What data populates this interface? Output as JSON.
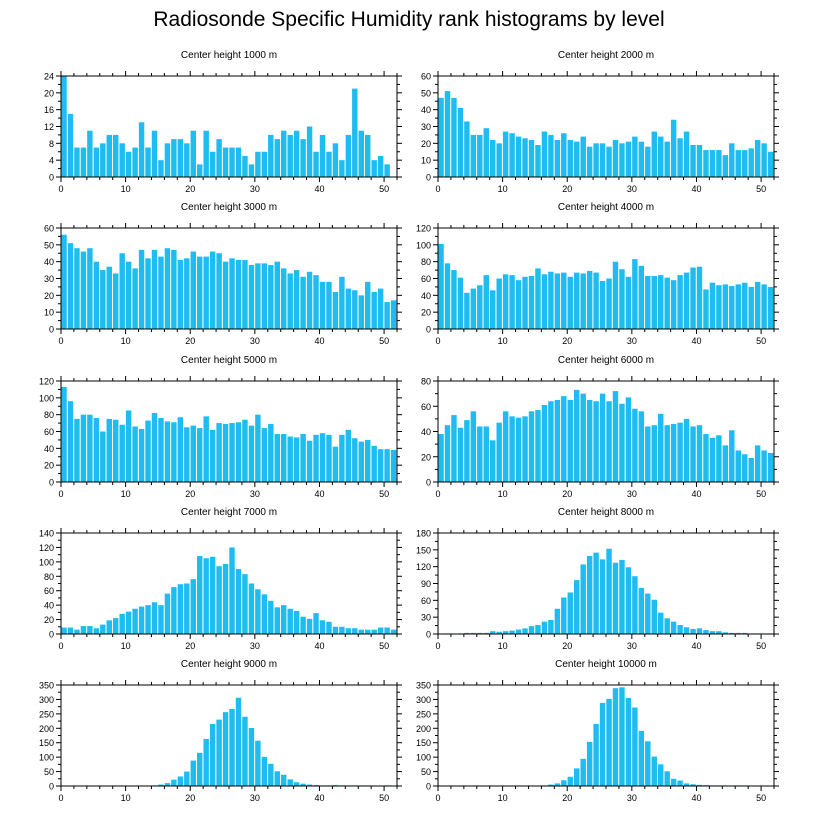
{
  "title": "Radiosonde Specific Humidity rank histograms by level",
  "colors": {
    "bar": "#1ebcf0",
    "axis": "#000000",
    "background": "#ffffff"
  },
  "chart_data": [
    {
      "type": "bar",
      "title": "Center height 1000 m",
      "xlim": [
        0,
        52
      ],
      "ylim": [
        0,
        24
      ],
      "xticks": [
        0,
        10,
        20,
        30,
        40,
        50
      ],
      "yticks": [
        0,
        4,
        8,
        12,
        16,
        20,
        24
      ],
      "values": [
        24,
        15,
        7,
        7,
        11,
        7,
        8,
        10,
        10,
        8,
        6,
        7,
        13,
        7,
        11,
        4,
        8,
        9,
        9,
        8,
        11,
        3,
        11,
        6,
        9,
        7,
        7,
        7,
        5,
        3,
        6,
        6,
        10,
        9,
        11,
        10,
        11,
        9,
        12,
        6,
        10,
        6,
        8,
        4,
        10,
        21,
        11,
        10,
        4,
        5,
        3
      ]
    },
    {
      "type": "bar",
      "title": "Center height 2000 m",
      "xlim": [
        0,
        52
      ],
      "ylim": [
        0,
        60
      ],
      "xticks": [
        0,
        10,
        20,
        30,
        40,
        50
      ],
      "yticks": [
        0,
        10,
        20,
        30,
        40,
        50,
        60
      ],
      "values": [
        47,
        51,
        47,
        41,
        33,
        25,
        25,
        29,
        22,
        20,
        27,
        26,
        24,
        23,
        22,
        19,
        27,
        25,
        22,
        26,
        22,
        21,
        24,
        18,
        20,
        20,
        18,
        22,
        20,
        21,
        24,
        21,
        18,
        27,
        24,
        21,
        34,
        23,
        27,
        19,
        19,
        16,
        16,
        16,
        13,
        20,
        16,
        16,
        17,
        22,
        20,
        15
      ]
    },
    {
      "type": "bar",
      "title": "Center height 3000 m",
      "xlim": [
        0,
        52
      ],
      "ylim": [
        0,
        60
      ],
      "xticks": [
        0,
        10,
        20,
        30,
        40,
        50
      ],
      "yticks": [
        0,
        10,
        20,
        30,
        40,
        50,
        60
      ],
      "values": [
        56,
        51,
        48,
        46,
        48,
        40,
        35,
        37,
        33,
        45,
        40,
        36,
        47,
        42,
        47,
        43,
        48,
        47,
        41,
        42,
        46,
        43,
        43,
        46,
        45,
        40,
        42,
        41,
        41,
        38,
        39,
        39,
        38,
        40,
        36,
        33,
        35,
        31,
        34,
        32,
        28,
        28,
        22,
        31,
        24,
        23,
        20,
        28,
        22,
        24,
        16,
        17
      ]
    },
    {
      "type": "bar",
      "title": "Center height 4000 m",
      "xlim": [
        0,
        52
      ],
      "ylim": [
        0,
        120
      ],
      "xticks": [
        0,
        10,
        20,
        30,
        40,
        50
      ],
      "yticks": [
        0,
        20,
        40,
        60,
        80,
        100,
        120
      ],
      "values": [
        101,
        78,
        70,
        61,
        43,
        48,
        52,
        64,
        46,
        60,
        65,
        64,
        58,
        62,
        63,
        72,
        65,
        68,
        66,
        67,
        62,
        67,
        66,
        69,
        67,
        57,
        60,
        80,
        71,
        62,
        83,
        75,
        63,
        63,
        64,
        61,
        58,
        64,
        67,
        73,
        74,
        47,
        55,
        52,
        53,
        51,
        53,
        55,
        50,
        56,
        53,
        50
      ]
    },
    {
      "type": "bar",
      "title": "Center height 5000 m",
      "xlim": [
        0,
        52
      ],
      "ylim": [
        0,
        120
      ],
      "xticks": [
        0,
        10,
        20,
        30,
        40,
        50
      ],
      "yticks": [
        0,
        20,
        40,
        60,
        80,
        100,
        120
      ],
      "values": [
        113,
        96,
        75,
        80,
        80,
        76,
        60,
        75,
        74,
        68,
        85,
        66,
        63,
        73,
        82,
        76,
        72,
        71,
        77,
        65,
        67,
        64,
        78,
        62,
        70,
        69,
        70,
        71,
        74,
        67,
        80,
        64,
        69,
        57,
        57,
        54,
        53,
        57,
        49,
        56,
        58,
        56,
        42,
        56,
        62,
        52,
        48,
        50,
        43,
        39,
        39,
        38
      ]
    },
    {
      "type": "bar",
      "title": "Center height 6000 m",
      "xlim": [
        0,
        52
      ],
      "ylim": [
        0,
        80
      ],
      "xticks": [
        0,
        10,
        20,
        30,
        40,
        50
      ],
      "yticks": [
        0,
        20,
        40,
        60,
        80
      ],
      "values": [
        38,
        45,
        53,
        43,
        49,
        56,
        44,
        44,
        33,
        47,
        56,
        52,
        51,
        52,
        56,
        57,
        61,
        64,
        65,
        68,
        65,
        73,
        70,
        65,
        64,
        70,
        64,
        72,
        62,
        67,
        58,
        56,
        44,
        45,
        54,
        45,
        46,
        47,
        50,
        44,
        45,
        38,
        35,
        37,
        29,
        41,
        25,
        22,
        19,
        29,
        25,
        23
      ]
    },
    {
      "type": "bar",
      "title": "Center height 7000 m",
      "xlim": [
        0,
        52
      ],
      "ylim": [
        0,
        140
      ],
      "xticks": [
        0,
        10,
        20,
        30,
        40,
        50
      ],
      "yticks": [
        0,
        20,
        40,
        60,
        80,
        100,
        120,
        140
      ],
      "values": [
        9,
        9,
        6,
        11,
        11,
        8,
        13,
        19,
        22,
        28,
        31,
        35,
        38,
        40,
        44,
        40,
        56,
        65,
        69,
        70,
        76,
        108,
        105,
        107,
        94,
        97,
        120,
        90,
        83,
        70,
        62,
        55,
        46,
        37,
        40,
        35,
        32,
        24,
        21,
        29,
        19,
        17,
        10,
        10,
        8,
        8,
        6,
        6,
        6,
        9,
        9,
        6
      ]
    },
    {
      "type": "bar",
      "title": "Center height 8000 m",
      "xlim": [
        0,
        52
      ],
      "ylim": [
        0,
        180
      ],
      "xticks": [
        0,
        10,
        20,
        30,
        40,
        50
      ],
      "yticks": [
        0,
        30,
        60,
        90,
        120,
        150,
        180
      ],
      "values": [
        0,
        1,
        1,
        1,
        2,
        2,
        2,
        2,
        5,
        4,
        5,
        6,
        8,
        10,
        14,
        16,
        22,
        25,
        45,
        65,
        74,
        96,
        124,
        139,
        145,
        133,
        152,
        127,
        132,
        119,
        103,
        82,
        72,
        61,
        38,
        28,
        22,
        16,
        12,
        9,
        10,
        7,
        5,
        5,
        3,
        2,
        2,
        2,
        1,
        1,
        1,
        1
      ]
    },
    {
      "type": "bar",
      "title": "Center height 9000 m",
      "xlim": [
        0,
        52
      ],
      "ylim": [
        0,
        350
      ],
      "xticks": [
        0,
        10,
        20,
        30,
        40,
        50
      ],
      "yticks": [
        0,
        50,
        100,
        150,
        200,
        250,
        300,
        350
      ],
      "values": [
        0,
        0,
        0,
        0,
        0,
        0,
        0,
        0,
        0,
        0,
        0,
        0,
        0,
        0,
        2,
        5,
        10,
        22,
        33,
        50,
        88,
        115,
        163,
        215,
        230,
        256,
        267,
        306,
        240,
        201,
        157,
        101,
        77,
        51,
        39,
        23,
        13,
        8,
        5,
        3,
        2,
        2,
        3,
        2,
        2,
        2,
        2,
        2,
        1,
        1,
        2,
        1
      ]
    },
    {
      "type": "bar",
      "title": "Center height 10000 m",
      "xlim": [
        0,
        52
      ],
      "ylim": [
        0,
        350
      ],
      "xticks": [
        0,
        10,
        20,
        30,
        40,
        50
      ],
      "yticks": [
        0,
        50,
        100,
        150,
        200,
        250,
        300,
        350
      ],
      "values": [
        0,
        0,
        0,
        0,
        0,
        0,
        0,
        0,
        0,
        0,
        0,
        0,
        0,
        0,
        0,
        1,
        2,
        5,
        9,
        20,
        32,
        61,
        94,
        153,
        215,
        288,
        302,
        339,
        342,
        305,
        272,
        191,
        155,
        102,
        75,
        51,
        25,
        19,
        9,
        6,
        4,
        3,
        2,
        2,
        2,
        1,
        2,
        1,
        1,
        1,
        1,
        1
      ]
    }
  ]
}
